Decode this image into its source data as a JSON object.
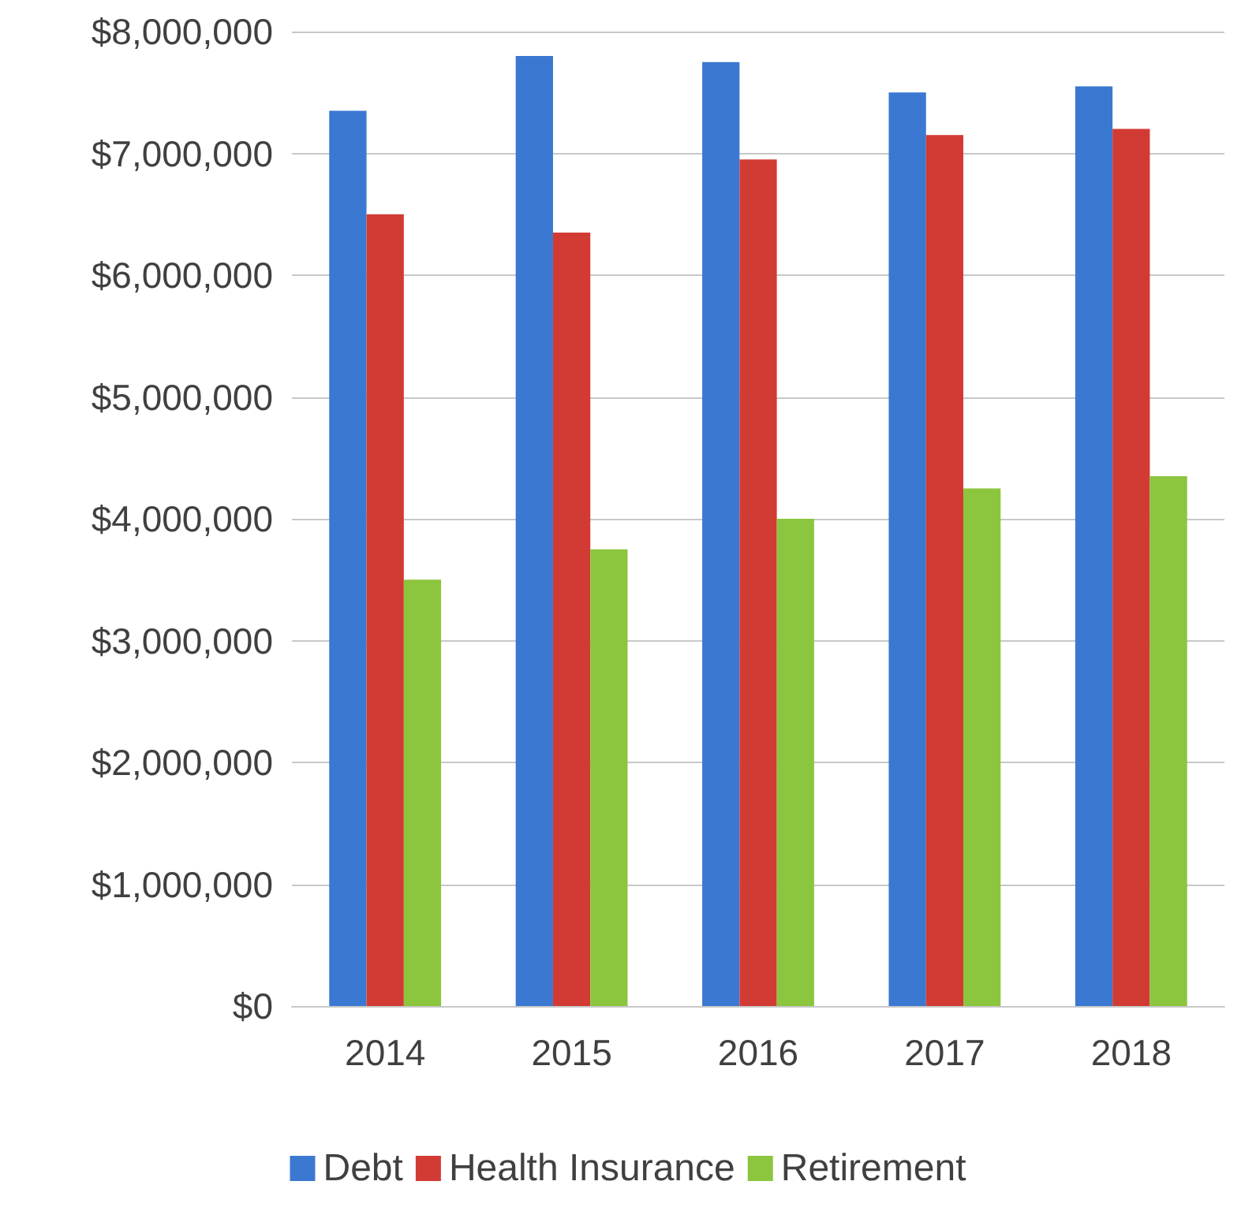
{
  "chart_data": {
    "type": "bar",
    "categories": [
      "2014",
      "2015",
      "2016",
      "2017",
      "2018"
    ],
    "series": [
      {
        "name": "Debt",
        "color": "#3b78d1",
        "values": [
          7350000,
          7800000,
          7750000,
          7500000,
          7550000
        ]
      },
      {
        "name": "Health Insurance",
        "color": "#d23b33",
        "values": [
          6500000,
          6350000,
          6950000,
          7150000,
          7200000
        ]
      },
      {
        "name": "Retirement",
        "color": "#8cc53e",
        "values": [
          3500000,
          3750000,
          4000000,
          4250000,
          4350000
        ]
      }
    ],
    "ylim": [
      0,
      8000000
    ],
    "yticks": [
      {
        "value": 0,
        "label": "$0"
      },
      {
        "value": 1000000,
        "label": "$1,000,000"
      },
      {
        "value": 2000000,
        "label": "$2,000,000"
      },
      {
        "value": 3000000,
        "label": "$3,000,000"
      },
      {
        "value": 4000000,
        "label": "$4,000,000"
      },
      {
        "value": 5000000,
        "label": "$5,000,000"
      },
      {
        "value": 6000000,
        "label": "$6,000,000"
      },
      {
        "value": 7000000,
        "label": "$7,000,000"
      },
      {
        "value": 8000000,
        "label": "$8,000,000"
      }
    ],
    "grid": "y",
    "legend": "bottom"
  }
}
